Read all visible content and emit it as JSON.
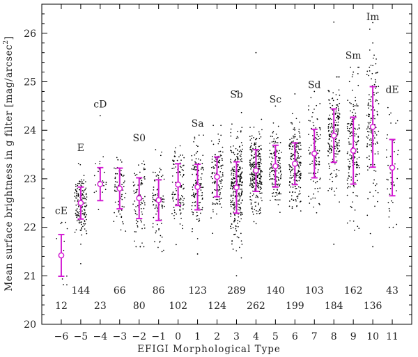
{
  "chart_data": {
    "type": "scatter",
    "xlabel": "EFIGI Morphological Type",
    "ylabel": "Mean surface brightness in g filter [mag/arcsec²]",
    "ylabel_main": "Mean surface brightness in g filter [mag/arcsec",
    "ylabel_sup": "2",
    "ylabel_end": "]",
    "xlim": [
      -7,
      12
    ],
    "ylim": [
      20,
      26.6
    ],
    "x_ticks": [
      -6,
      -5,
      -4,
      -3,
      -2,
      -1,
      0,
      1,
      2,
      3,
      4,
      5,
      6,
      7,
      8,
      9,
      10,
      11
    ],
    "x_tick_labels": [
      "−6",
      "−5",
      "−4",
      "−3",
      "−2",
      "−1",
      "0",
      "1",
      "2",
      "3",
      "4",
      "5",
      "6",
      "7",
      "8",
      "9",
      "10",
      "11"
    ],
    "y_ticks": [
      20,
      21,
      22,
      23,
      24,
      25,
      26
    ],
    "y_tick_labels": [
      "20",
      "21",
      "22",
      "23",
      "24",
      "25",
      "26"
    ],
    "marker_color": "#d21bd2",
    "point_color": "#000000",
    "types": [
      {
        "x": -6,
        "label": "cE",
        "count": "12",
        "mean": 21.42,
        "std": 0.43,
        "p_min": 20.7,
        "p_max": 22.1
      },
      {
        "x": -5,
        "label": "E",
        "count": "144",
        "mean": 22.5,
        "std": 0.33,
        "p_min": 21.2,
        "p_max": 23.4
      },
      {
        "x": -4,
        "label": "cD",
        "count": "23",
        "mean": 22.89,
        "std": 0.34,
        "p_min": 22.3,
        "p_max": 24.3
      },
      {
        "x": -3,
        "label": "",
        "count": "66",
        "mean": 22.8,
        "std": 0.42,
        "p_min": 21.9,
        "p_max": 24.0
      },
      {
        "x": -2,
        "label": "S0",
        "count": "80",
        "mean": 22.6,
        "std": 0.42,
        "p_min": 21.6,
        "p_max": 23.6
      },
      {
        "x": -1,
        "label": "",
        "count": "86",
        "mean": 22.56,
        "std": 0.42,
        "p_min": 21.5,
        "p_max": 23.6
      },
      {
        "x": 0,
        "label": "",
        "count": "102",
        "mean": 22.88,
        "std": 0.43,
        "p_min": 21.3,
        "p_max": 24.0
      },
      {
        "x": 1,
        "label": "Sa",
        "count": "123",
        "mean": 22.83,
        "std": 0.47,
        "p_min": 21.7,
        "p_max": 23.9
      },
      {
        "x": 2,
        "label": "",
        "count": "124",
        "mean": 23.04,
        "std": 0.41,
        "p_min": 21.4,
        "p_max": 24.1
      },
      {
        "x": 3,
        "label": "Sb",
        "count": "289",
        "mean": 22.82,
        "std": 0.53,
        "p_min": 21.0,
        "p_max": 24.5
      },
      {
        "x": 4,
        "label": "",
        "count": "262",
        "mean": 23.17,
        "std": 0.43,
        "p_min": 21.6,
        "p_max": 24.6
      },
      {
        "x": 5,
        "label": "Sc",
        "count": "140",
        "mean": 23.26,
        "std": 0.43,
        "p_min": 21.8,
        "p_max": 24.4
      },
      {
        "x": 6,
        "label": "",
        "count": "199",
        "mean": 23.31,
        "std": 0.43,
        "p_min": 22.0,
        "p_max": 24.6
      },
      {
        "x": 7,
        "label": "Sd",
        "count": "103",
        "mean": 23.52,
        "std": 0.5,
        "p_min": 21.8,
        "p_max": 24.7
      },
      {
        "x": 8,
        "label": "",
        "count": "184",
        "mean": 23.89,
        "std": 0.55,
        "p_min": 21.7,
        "p_max": 25.1
      },
      {
        "x": 9,
        "label": "Sm",
        "count": "162",
        "mean": 23.58,
        "std": 0.69,
        "p_min": 21.9,
        "p_max": 25.3
      },
      {
        "x": 10,
        "label": "Im",
        "count": "136",
        "mean": 24.07,
        "std": 0.83,
        "p_min": 21.6,
        "p_max": 26.1
      },
      {
        "x": 11,
        "label": "dE",
        "count": "43",
        "mean": 23.23,
        "std": 0.58,
        "p_min": 22.0,
        "p_max": 24.6
      }
    ],
    "outliers": [
      [
        8,
        26.23
      ],
      [
        4,
        25.6
      ],
      [
        10,
        26.22
      ],
      [
        10,
        25.8
      ],
      [
        -4,
        24.3
      ],
      [
        9,
        25.2
      ],
      [
        7,
        24.8
      ],
      [
        5,
        24.5
      ],
      [
        6,
        24.75
      ],
      [
        3,
        24.8
      ],
      [
        1,
        21.45
      ],
      [
        -5,
        21.25
      ],
      [
        3,
        21.0
      ],
      [
        10,
        21.6
      ],
      [
        8,
        21.65
      ]
    ]
  }
}
